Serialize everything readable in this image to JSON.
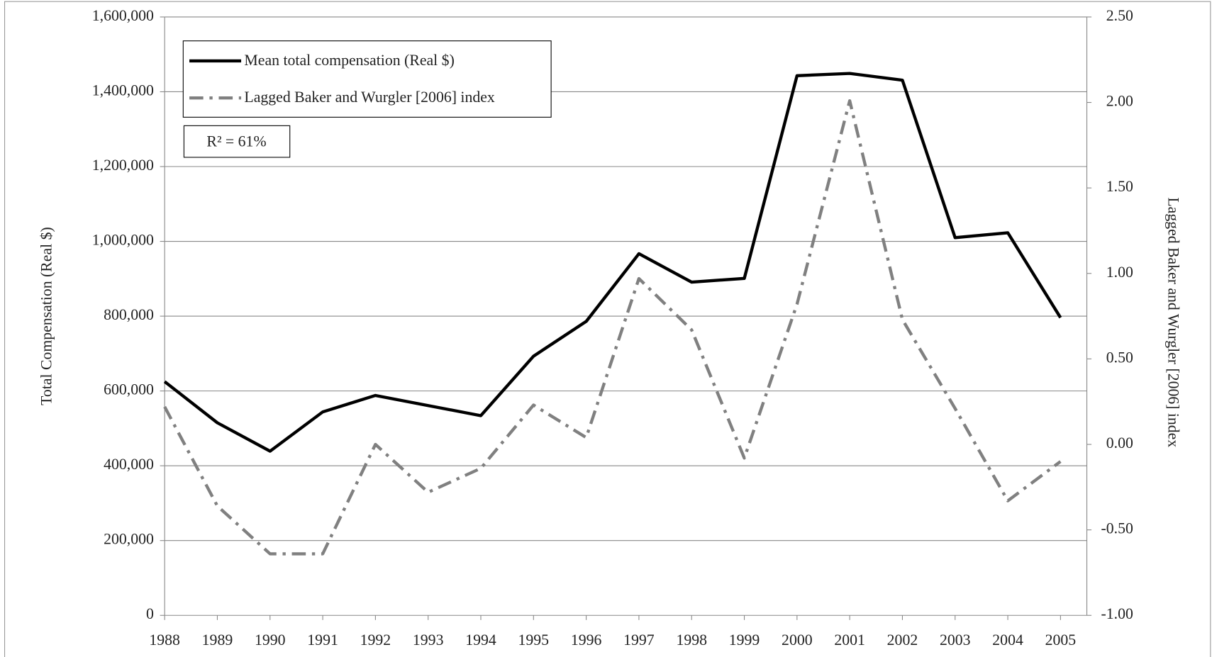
{
  "chart_data": {
    "type": "line",
    "categories": [
      "1988",
      "1989",
      "1990",
      "1991",
      "1992",
      "1993",
      "1994",
      "1995",
      "1996",
      "1997",
      "1998",
      "1999",
      "2000",
      "2001",
      "2002",
      "2003",
      "2004",
      "2005"
    ],
    "series": [
      {
        "name": "Mean total compensation (Real $)",
        "color": "#000000",
        "style": "solid",
        "values": [
          625000,
          515000,
          439000,
          544000,
          588000,
          561000,
          534000,
          693000,
          786000,
          967000,
          891000,
          901000,
          1443000,
          1449000,
          1431000,
          1010000,
          1023000,
          796000
        ]
      },
      {
        "name": "Lagged Baker and Wurgler [2006] index",
        "color": "#808080",
        "style": "dash-dot",
        "axis": "y2",
        "values": [
          0.22,
          -0.36,
          -0.64,
          -0.64,
          0.0,
          -0.28,
          -0.14,
          0.23,
          0.04,
          0.97,
          0.67,
          -0.08,
          0.82,
          2.01,
          0.73,
          0.21,
          -0.33,
          -0.1
        ]
      }
    ],
    "ylabel": "Total Compensation  (Real $)",
    "y2label": "Lagged Baker and Wurgler  [2006]  index",
    "annotation": "R² = 61%",
    "ylim": [
      0,
      1600000
    ],
    "yticks": [
      0,
      {
        "value": 200000,
        "label": "200,000"
      },
      {
        "value": 400000,
        "label": "400,000"
      },
      {
        "value": 600000,
        "label": "600,000"
      },
      {
        "value": 800000,
        "label": "800,000"
      },
      {
        "value": 1000000,
        "label": "1,000,000"
      },
      {
        "value": 1200000,
        "label": "1,200,000"
      },
      {
        "value": 1400000,
        "label": "1,400,000"
      },
      {
        "value": 1600000,
        "label": "1,600,000"
      }
    ],
    "y2lim": [
      -1,
      2.5
    ],
    "y2ticks": [
      {
        "value": -1,
        "label": "-1.00"
      },
      {
        "value": -0.5,
        "label": "-0.50"
      },
      {
        "value": 0,
        "label": "0.00"
      },
      {
        "value": 0.5,
        "label": "0.50"
      },
      {
        "value": 1,
        "label": "1.00"
      },
      {
        "value": 1.5,
        "label": "1.50"
      },
      {
        "value": 2,
        "label": "2.00"
      },
      {
        "value": 2.5,
        "label": "2.50"
      }
    ],
    "grid": true,
    "legend": "upper left"
  }
}
